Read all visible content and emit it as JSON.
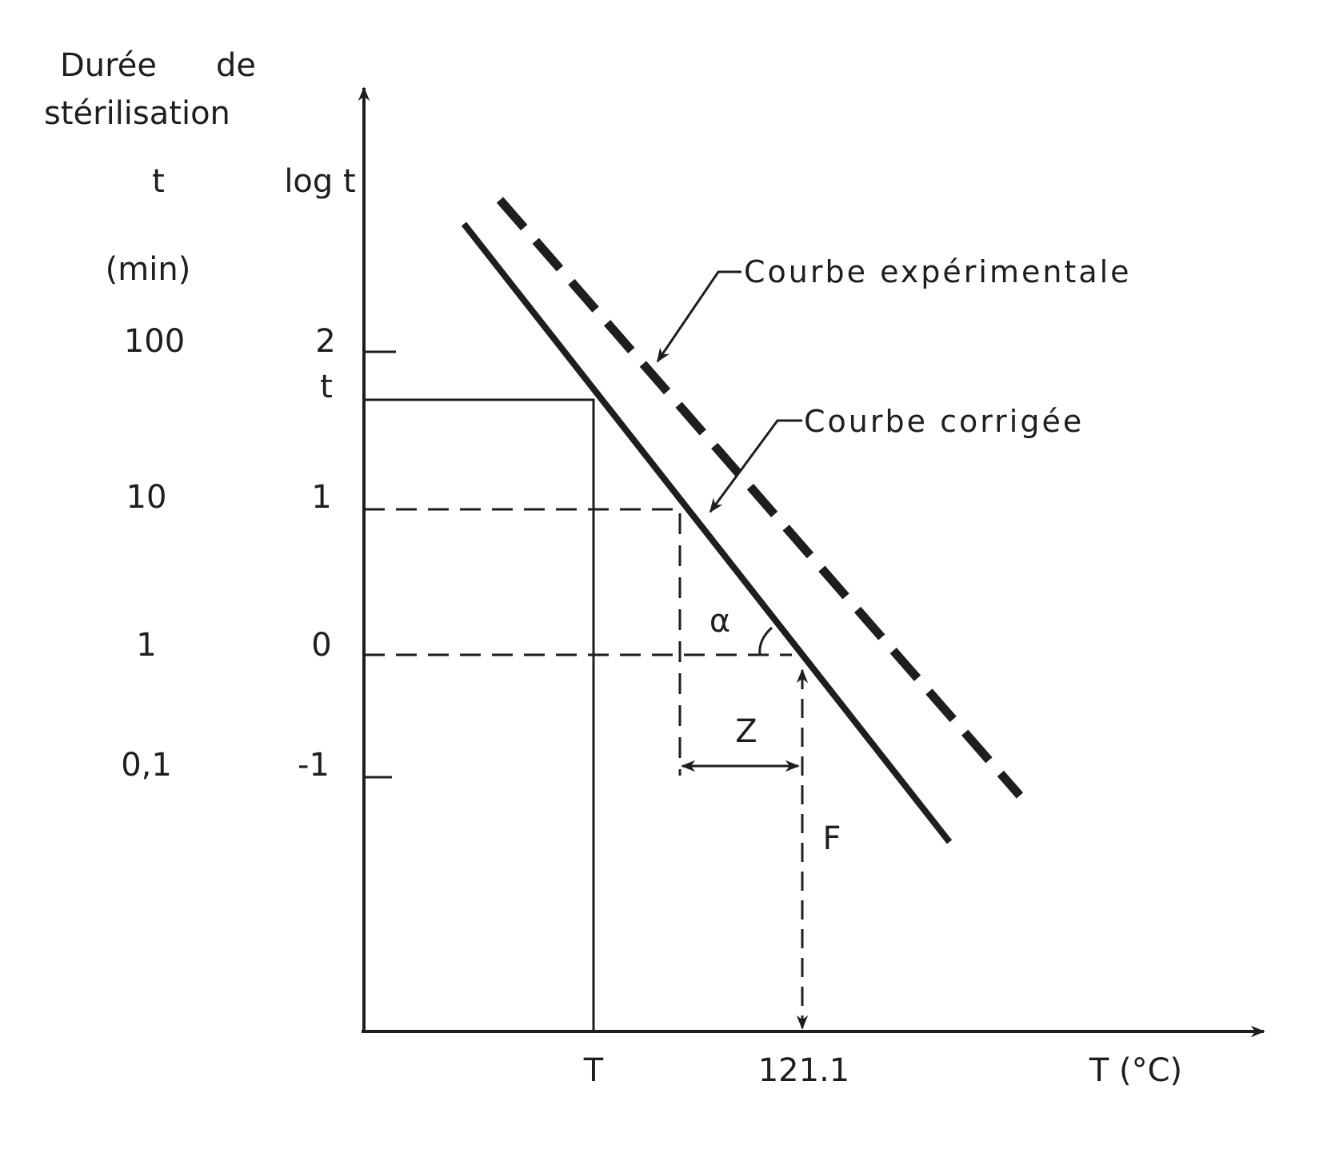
{
  "axes": {
    "y_title_line1": "Durée",
    "y_title_line1b": "de",
    "y_title_line2": "stérilisation",
    "col_t_header": "t",
    "col_logt_header": "log t",
    "unit": "(min)",
    "x_unit_label": "T (°C)"
  },
  "y_ticks": [
    {
      "t": "100",
      "logt": "2"
    },
    {
      "t": "10",
      "logt": "1"
    },
    {
      "t": "1",
      "logt": "0"
    },
    {
      "t": "0,1",
      "logt": "-1"
    }
  ],
  "point_labels": {
    "t_marker": "t",
    "T_marker": "T",
    "ref_temp": "121.1",
    "alpha": "α",
    "z": "Z",
    "f": "F"
  },
  "curves": {
    "experimental": "Courbe expérimentale",
    "corrected": "Courbe corrigée"
  },
  "colors": {
    "ink": "#1e1e1e",
    "background": "#ffffff"
  }
}
